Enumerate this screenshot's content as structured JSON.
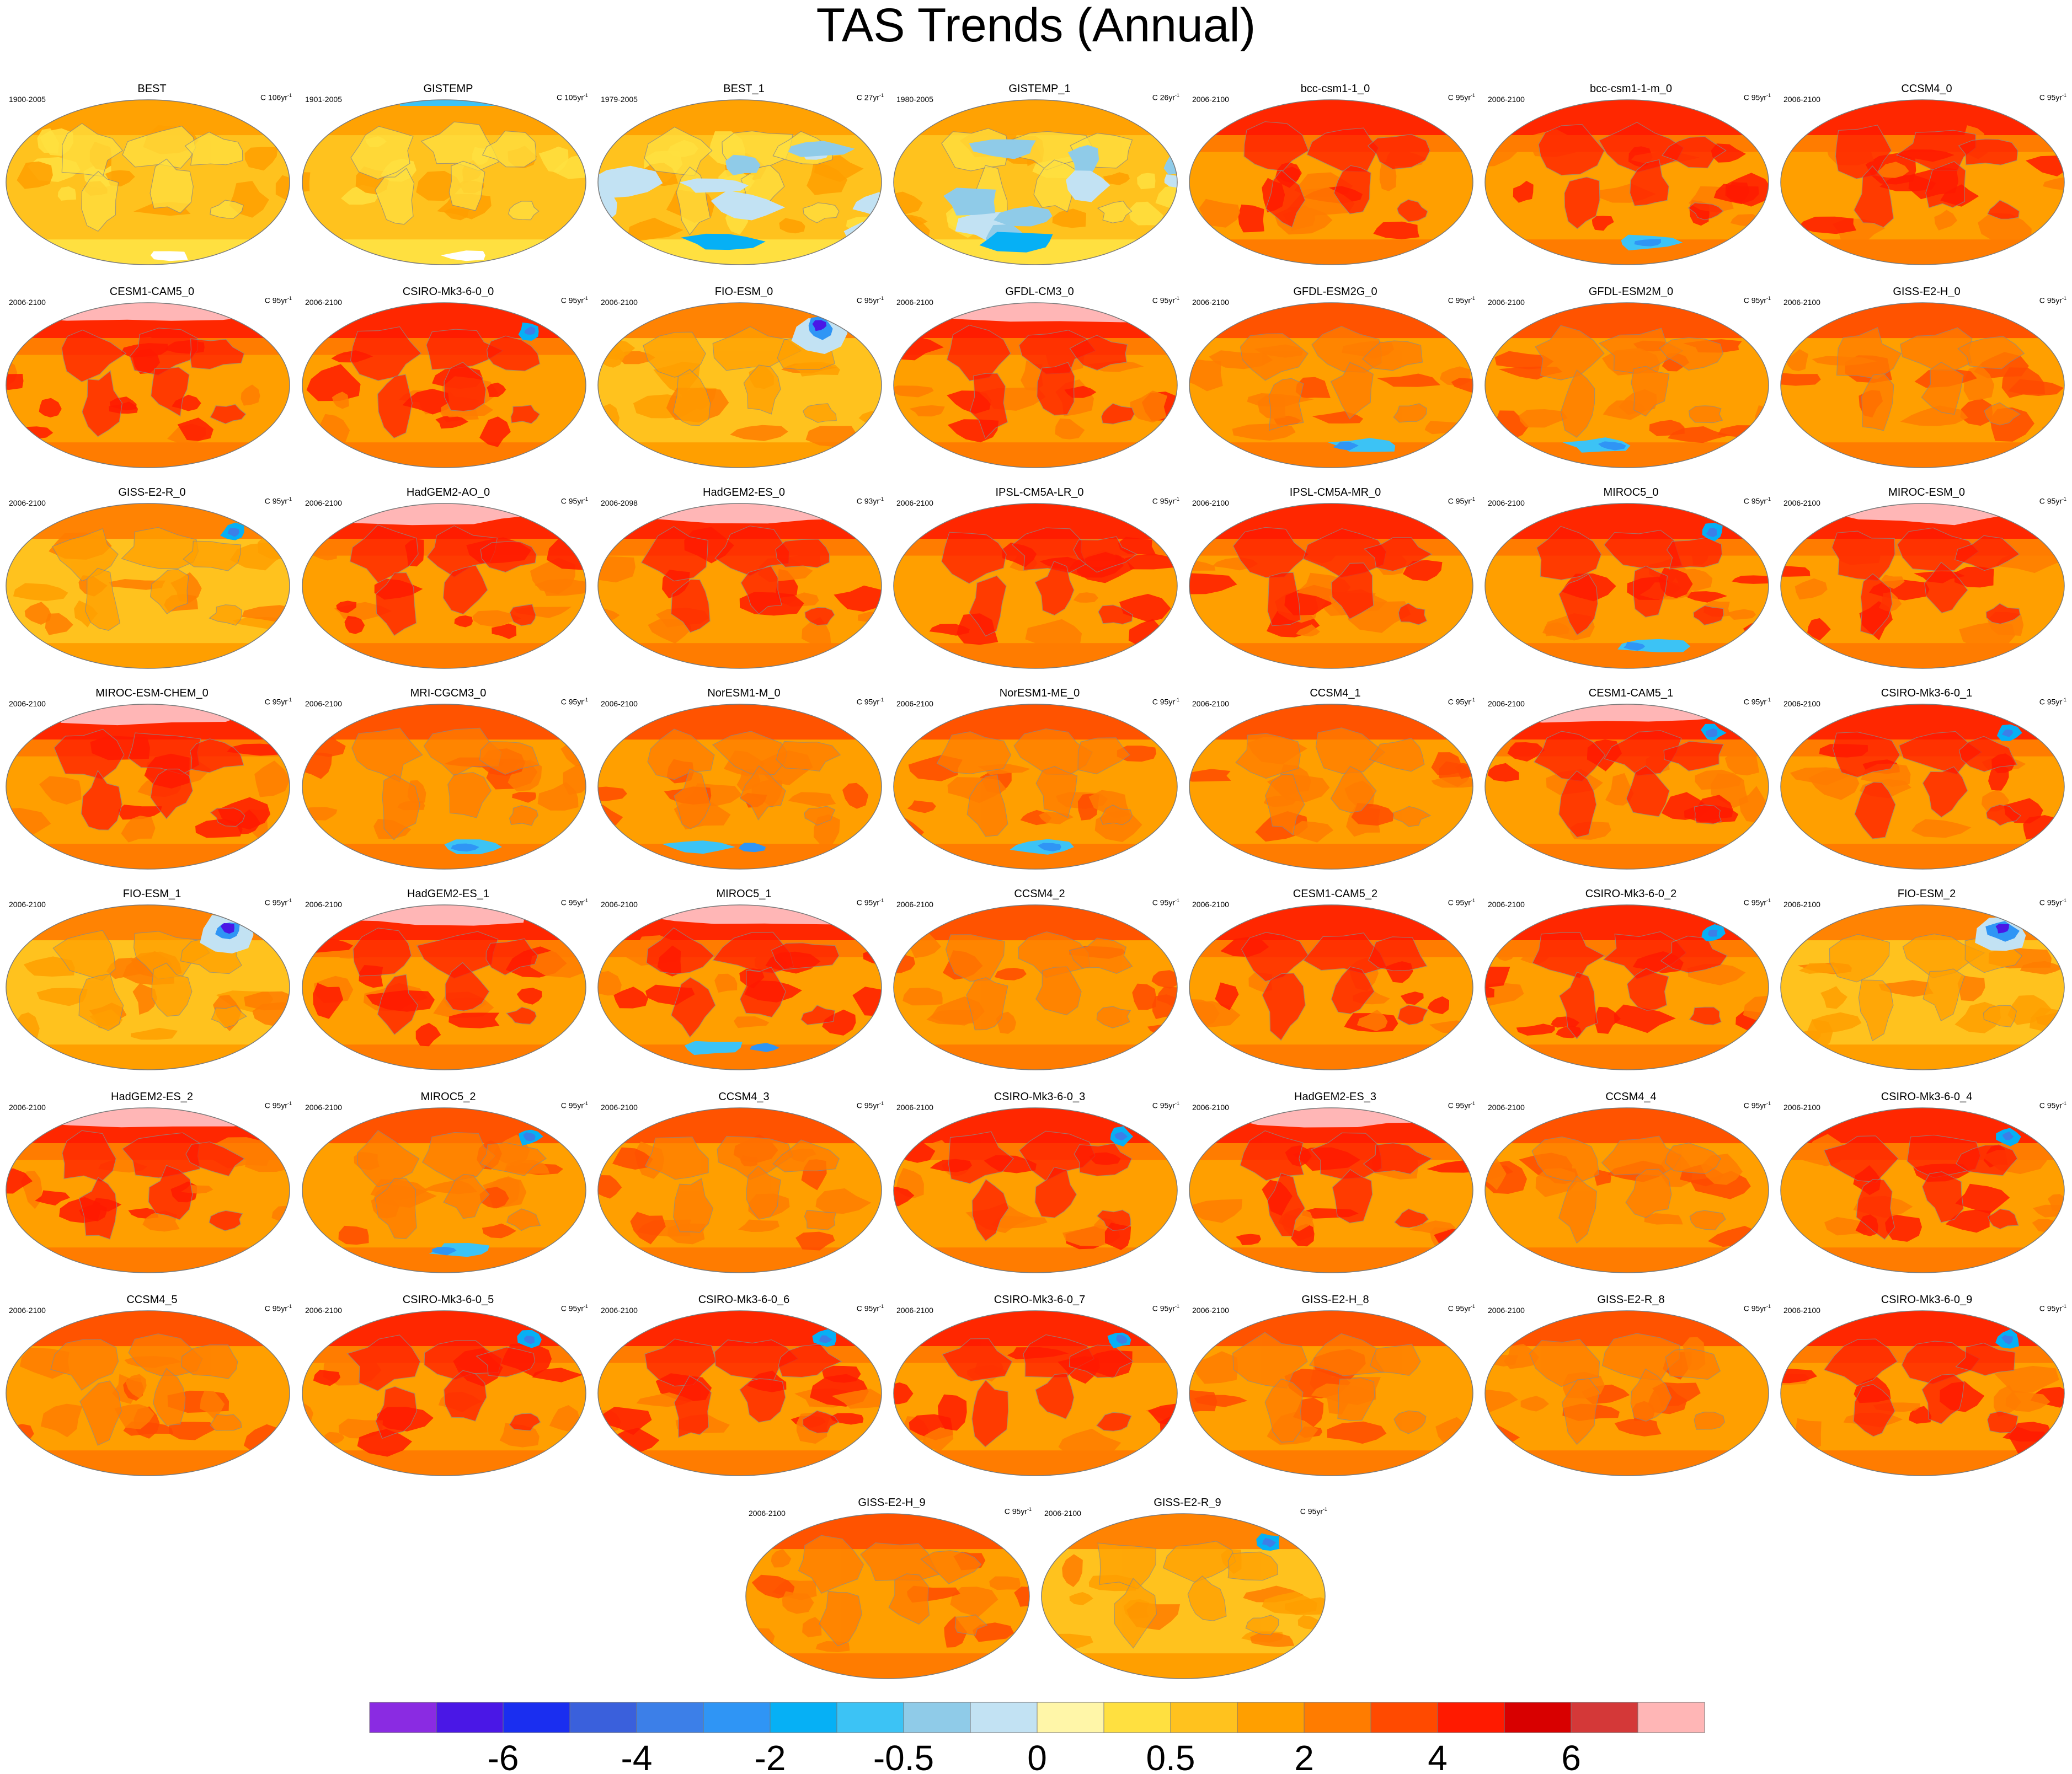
{
  "title": "TAS Trends (Annual)",
  "units_prefix": "C",
  "units_suffix": "yr",
  "units_exponent": "-1",
  "chart_data": {
    "type": "map",
    "projection": "robinson",
    "title": "TAS Trends (Annual)",
    "colorbar": {
      "colors": [
        "#8a2be2",
        "#4a17e6",
        "#1a2ef0",
        "#3a60dc",
        "#3c7fe8",
        "#2f95f5",
        "#06b0f5",
        "#3cc3f5",
        "#8fcbe8",
        "#c2e2f3",
        "#fff6a8",
        "#ffe040",
        "#ffc21e",
        "#ff9f00",
        "#ff7c00",
        "#ff4a00",
        "#ff1a00",
        "#d80000",
        "#d43838",
        "#ffb6b6"
      ],
      "tick_labels": [
        "-6",
        "-4",
        "-2",
        "-0.5",
        "0",
        "0.5",
        "2",
        "4",
        "6"
      ]
    },
    "panels": [
      {
        "name": "BEST",
        "period": "1900-2005",
        "years": "106",
        "warming": "obs",
        "extra": "S-white"
      },
      {
        "name": "GISTEMP",
        "period": "1901-2005",
        "years": "105",
        "warming": "obs",
        "extra": "N-blue S-white"
      },
      {
        "name": "BEST_1",
        "period": "1979-2005",
        "years": "27",
        "warming": "obs-blue",
        "extra": ""
      },
      {
        "name": "GISTEMP_1",
        "period": "1980-2005",
        "years": "26",
        "warming": "obs-blue",
        "extra": ""
      },
      {
        "name": "bcc-csm1-1_0",
        "period": "2006-2100",
        "years": "95",
        "warming": "high",
        "extra": ""
      },
      {
        "name": "bcc-csm1-1-m_0",
        "period": "2006-2100",
        "years": "95",
        "warming": "high",
        "extra": "S-blue"
      },
      {
        "name": "CCSM4_0",
        "period": "2006-2100",
        "years": "95",
        "warming": "high",
        "extra": ""
      },
      {
        "name": "CESM1-CAM5_0",
        "period": "2006-2100",
        "years": "95",
        "warming": "high",
        "extra": "N-pink"
      },
      {
        "name": "CSIRO-Mk3-6-0_0",
        "period": "2006-2100",
        "years": "95",
        "warming": "high",
        "extra": "NA-blue"
      },
      {
        "name": "FIO-ESM_0",
        "period": "2006-2100",
        "years": "95",
        "warming": "low",
        "extra": "NA-purple"
      },
      {
        "name": "GFDL-CM3_0",
        "period": "2006-2100",
        "years": "95",
        "warming": "high",
        "extra": "N-pink"
      },
      {
        "name": "GFDL-ESM2G_0",
        "period": "2006-2100",
        "years": "95",
        "warming": "mid",
        "extra": "S-blue"
      },
      {
        "name": "GFDL-ESM2M_0",
        "period": "2006-2100",
        "years": "95",
        "warming": "mid",
        "extra": "S-blue"
      },
      {
        "name": "GISS-E2-H_0",
        "period": "2006-2100",
        "years": "95",
        "warming": "mid",
        "extra": ""
      },
      {
        "name": "GISS-E2-R_0",
        "period": "2006-2100",
        "years": "95",
        "warming": "low",
        "extra": "NA-blue"
      },
      {
        "name": "HadGEM2-AO_0",
        "period": "2006-2100",
        "years": "95",
        "warming": "high",
        "extra": "N-pink"
      },
      {
        "name": "HadGEM2-ES_0",
        "period": "2006-2098",
        "years": "93",
        "warming": "high",
        "extra": "N-pink"
      },
      {
        "name": "IPSL-CM5A-LR_0",
        "period": "2006-2100",
        "years": "95",
        "warming": "high",
        "extra": ""
      },
      {
        "name": "IPSL-CM5A-MR_0",
        "period": "2006-2100",
        "years": "95",
        "warming": "high",
        "extra": ""
      },
      {
        "name": "MIROC5_0",
        "period": "2006-2100",
        "years": "95",
        "warming": "high",
        "extra": "S-blue NA-blue"
      },
      {
        "name": "MIROC-ESM_0",
        "period": "2006-2100",
        "years": "95",
        "warming": "high",
        "extra": "N-pink"
      },
      {
        "name": "MIROC-ESM-CHEM_0",
        "period": "2006-2100",
        "years": "95",
        "warming": "high",
        "extra": "N-pink"
      },
      {
        "name": "MRI-CGCM3_0",
        "period": "2006-2100",
        "years": "95",
        "warming": "mid",
        "extra": "S-blue"
      },
      {
        "name": "NorESM1-M_0",
        "period": "2006-2100",
        "years": "95",
        "warming": "mid",
        "extra": "S-blue"
      },
      {
        "name": "NorESM1-ME_0",
        "period": "2006-2100",
        "years": "95",
        "warming": "mid",
        "extra": "S-blue"
      },
      {
        "name": "CCSM4_1",
        "period": "2006-2100",
        "years": "95",
        "warming": "mid",
        "extra": ""
      },
      {
        "name": "CESM1-CAM5_1",
        "period": "2006-2100",
        "years": "95",
        "warming": "high",
        "extra": "N-pink NA-blue"
      },
      {
        "name": "CSIRO-Mk3-6-0_1",
        "period": "2006-2100",
        "years": "95",
        "warming": "high",
        "extra": "NA-blue"
      },
      {
        "name": "FIO-ESM_1",
        "period": "2006-2100",
        "years": "95",
        "warming": "low",
        "extra": "NA-purple"
      },
      {
        "name": "HadGEM2-ES_1",
        "period": "2006-2100",
        "years": "95",
        "warming": "high",
        "extra": "N-pink"
      },
      {
        "name": "MIROC5_1",
        "period": "2006-2100",
        "years": "95",
        "warming": "high",
        "extra": "N-pink S-blue"
      },
      {
        "name": "CCSM4_2",
        "period": "2006-2100",
        "years": "95",
        "warming": "mid",
        "extra": ""
      },
      {
        "name": "CESM1-CAM5_2",
        "period": "2006-2100",
        "years": "95",
        "warming": "high",
        "extra": ""
      },
      {
        "name": "CSIRO-Mk3-6-0_2",
        "period": "2006-2100",
        "years": "95",
        "warming": "high",
        "extra": "NA-blue"
      },
      {
        "name": "FIO-ESM_2",
        "period": "2006-2100",
        "years": "95",
        "warming": "low",
        "extra": "NA-purple"
      },
      {
        "name": "HadGEM2-ES_2",
        "period": "2006-2100",
        "years": "95",
        "warming": "high",
        "extra": "N-pink"
      },
      {
        "name": "MIROC5_2",
        "period": "2006-2100",
        "years": "95",
        "warming": "mid",
        "extra": "S-blue NA-blue"
      },
      {
        "name": "CCSM4_3",
        "period": "2006-2100",
        "years": "95",
        "warming": "mid",
        "extra": ""
      },
      {
        "name": "CSIRO-Mk3-6-0_3",
        "period": "2006-2100",
        "years": "95",
        "warming": "high",
        "extra": "NA-blue"
      },
      {
        "name": "HadGEM2-ES_3",
        "period": "2006-2100",
        "years": "95",
        "warming": "high",
        "extra": "N-pink"
      },
      {
        "name": "CCSM4_4",
        "period": "2006-2100",
        "years": "95",
        "warming": "mid",
        "extra": ""
      },
      {
        "name": "CSIRO-Mk3-6-0_4",
        "period": "2006-2100",
        "years": "95",
        "warming": "high",
        "extra": "NA-blue"
      },
      {
        "name": "CCSM4_5",
        "period": "2006-2100",
        "years": "95",
        "warming": "mid",
        "extra": ""
      },
      {
        "name": "CSIRO-Mk3-6-0_5",
        "period": "2006-2100",
        "years": "95",
        "warming": "high",
        "extra": "NA-blue"
      },
      {
        "name": "CSIRO-Mk3-6-0_6",
        "period": "2006-2100",
        "years": "95",
        "warming": "high",
        "extra": "NA-blue"
      },
      {
        "name": "CSIRO-Mk3-6-0_7",
        "period": "2006-2100",
        "years": "95",
        "warming": "high",
        "extra": "NA-blue"
      },
      {
        "name": "GISS-E2-H_8",
        "period": "2006-2100",
        "years": "95",
        "warming": "mid",
        "extra": ""
      },
      {
        "name": "GISS-E2-R_8",
        "period": "2006-2100",
        "years": "95",
        "warming": "mid",
        "extra": ""
      },
      {
        "name": "CSIRO-Mk3-6-0_9",
        "period": "2006-2100",
        "years": "95",
        "warming": "high",
        "extra": "NA-blue"
      },
      {
        "name": "GISS-E2-H_9",
        "period": "2006-2100",
        "years": "95",
        "warming": "mid",
        "extra": ""
      },
      {
        "name": "GISS-E2-R_9",
        "period": "2006-2100",
        "years": "95",
        "warming": "low",
        "extra": "NA-blue"
      }
    ]
  }
}
